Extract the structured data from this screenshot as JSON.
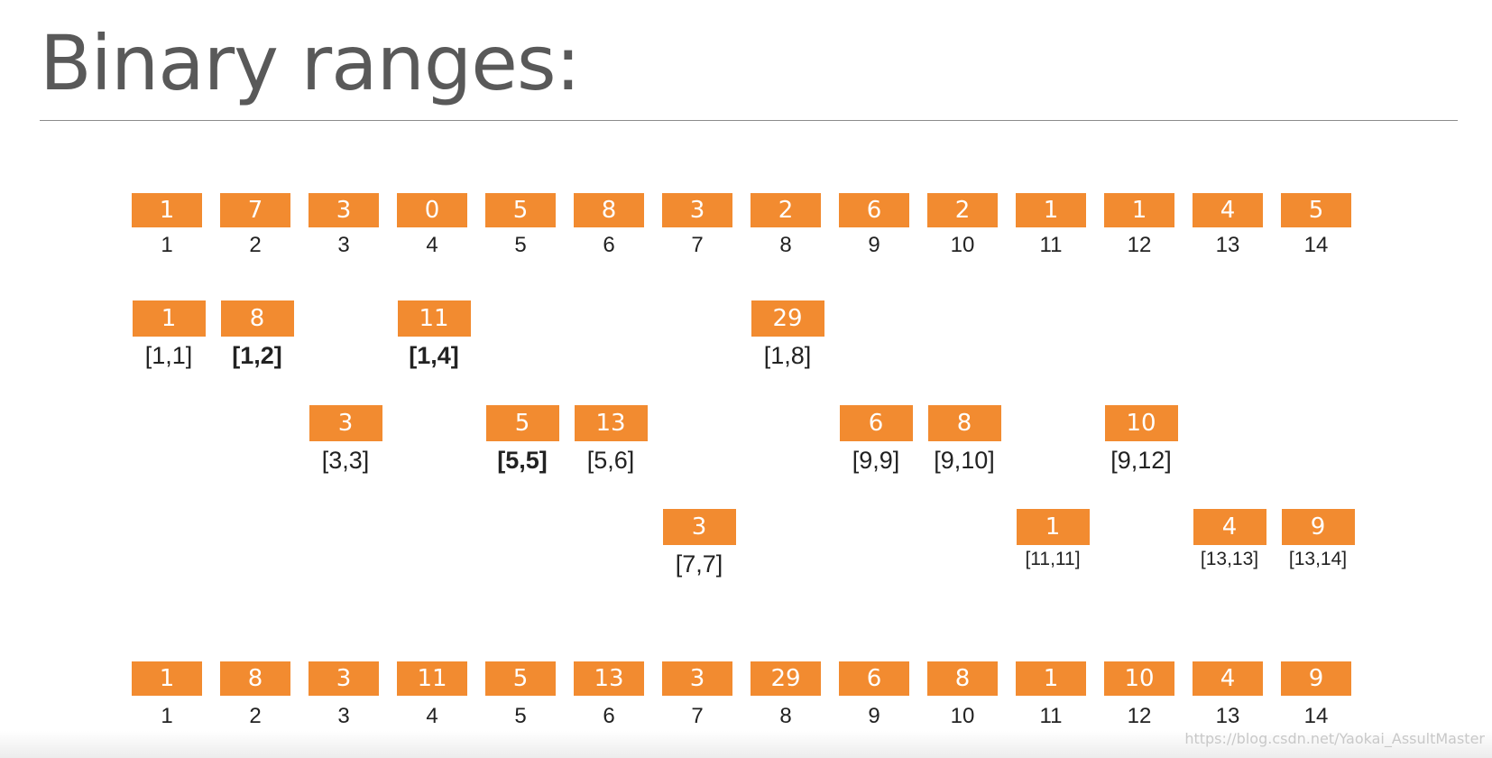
{
  "title": "Binary ranges:",
  "rows": {
    "array": {
      "values": [
        "1",
        "7",
        "3",
        "0",
        "5",
        "8",
        "3",
        "2",
        "6",
        "2",
        "1",
        "1",
        "4",
        "5"
      ],
      "indices": [
        "1",
        "2",
        "3",
        "4",
        "5",
        "6",
        "7",
        "8",
        "9",
        "10",
        "11",
        "12",
        "13",
        "14"
      ]
    },
    "level1": [
      {
        "value": "1",
        "range": "[1,1]",
        "col": 1
      },
      {
        "value": "8",
        "range": "[1,2]",
        "col": 2,
        "bold": true
      },
      {
        "value": "11",
        "range": "[1,4]",
        "col": 4,
        "bold": true
      },
      {
        "value": "29",
        "range": "[1,8]",
        "col": 8
      }
    ],
    "level2": [
      {
        "value": "3",
        "range": "[3,3]",
        "col": 3
      },
      {
        "value": "5",
        "range": "[5,5]",
        "col": 5,
        "bold": true
      },
      {
        "value": "13",
        "range": "[5,6]",
        "col": 6
      },
      {
        "value": "6",
        "range": "[9,9]",
        "col": 9
      },
      {
        "value": "8",
        "range": "[9,10]",
        "col": 10
      },
      {
        "value": "10",
        "range": "[9,12]",
        "col": 12
      }
    ],
    "level3": [
      {
        "value": "3",
        "range": "[7,7]",
        "col": 7
      },
      {
        "value": "1",
        "range": "[11,11]",
        "col": 11,
        "small": true
      },
      {
        "value": "4",
        "range": "[13,13]",
        "col": 13,
        "small": true
      },
      {
        "value": "9",
        "range": "[13,14]",
        "col": 14,
        "small": true
      }
    ],
    "tree": {
      "values": [
        "1",
        "8",
        "3",
        "11",
        "5",
        "13",
        "3",
        "29",
        "6",
        "8",
        "1",
        "10",
        "4",
        "9"
      ],
      "indices": [
        "1",
        "2",
        "3",
        "4",
        "5",
        "6",
        "7",
        "8",
        "9",
        "10",
        "11",
        "12",
        "13",
        "14"
      ]
    }
  },
  "colors": {
    "box": "#f28b30",
    "box_text": "#ffffff",
    "label": "#222222",
    "title": "#595959"
  },
  "watermark": "https://blog.csdn.net/Yaokai_AssultMaster"
}
